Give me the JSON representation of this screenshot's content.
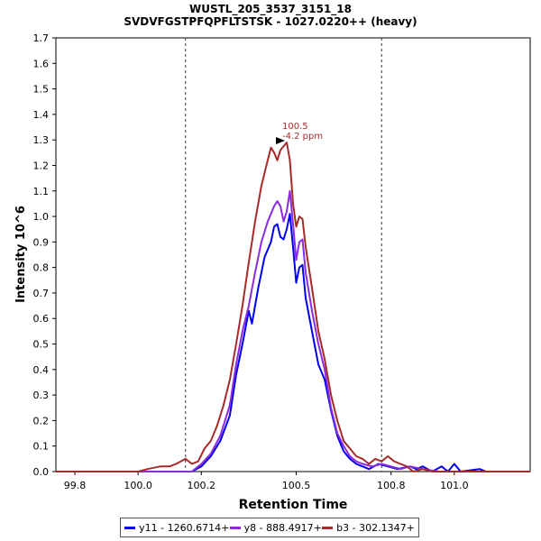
{
  "chart": {
    "title": "WUSTL_205_3537_3151_18",
    "subtitle": "SVDVFGSTPFQPFLTSTSK - 1027.0220++ (heavy)",
    "xlabel": "Retention Time",
    "ylabel": "Intensity 10^6",
    "annotation_line1": "100.5",
    "annotation_line2": "-4.2 ppm"
  },
  "legend": [
    {
      "label": "y11 - 1260.6714+",
      "color": "#0000ee"
    },
    {
      "label": "y8 - 888.4917+",
      "color": "#8a2be2"
    },
    {
      "label": "b3 - 302.1347+",
      "color": "#a52a2a"
    }
  ],
  "chart_data": {
    "type": "line",
    "title": "WUSTL_205_3537_3151_18",
    "subtitle": "SVDVFGSTPFQPFLTSTSK - 1027.0220++ (heavy)",
    "xlabel": "Retention Time",
    "ylabel": "Intensity 10^6",
    "xlim": [
      99.74,
      101.24
    ],
    "ylim": [
      0,
      1.7
    ],
    "x_ticks": [
      "99.8",
      "100.0",
      "100.2",
      "100.5",
      "100.8",
      "101.0"
    ],
    "x_tick_values": [
      99.8,
      100.0,
      100.2,
      100.5,
      100.8,
      101.0
    ],
    "y_ticks": [
      "0.0",
      "0.1",
      "0.2",
      "0.3",
      "0.4",
      "0.5",
      "0.6",
      "0.7",
      "0.8",
      "0.9",
      "1.0",
      "1.1",
      "1.2",
      "1.3",
      "1.4",
      "1.5",
      "1.6",
      "1.7"
    ],
    "grid": false,
    "legend_position": "bottom",
    "integration_boundaries": [
      100.15,
      100.77
    ],
    "peak_marker": {
      "x": 100.47,
      "y": 1.29,
      "label": "100.5",
      "sublabel": "-4.2 ppm"
    },
    "series": [
      {
        "name": "y11 - 1260.6714+",
        "color": "#0000ee",
        "points": [
          [
            99.74,
            0.0
          ],
          [
            100.05,
            0.0
          ],
          [
            100.17,
            0.0
          ],
          [
            100.2,
            0.02
          ],
          [
            100.23,
            0.06
          ],
          [
            100.26,
            0.12
          ],
          [
            100.29,
            0.22
          ],
          [
            100.31,
            0.38
          ],
          [
            100.33,
            0.5
          ],
          [
            100.35,
            0.63
          ],
          [
            100.36,
            0.58
          ],
          [
            100.38,
            0.72
          ],
          [
            100.4,
            0.84
          ],
          [
            100.42,
            0.9
          ],
          [
            100.43,
            0.96
          ],
          [
            100.44,
            0.97
          ],
          [
            100.45,
            0.92
          ],
          [
            100.46,
            0.91
          ],
          [
            100.47,
            0.95
          ],
          [
            100.48,
            1.01
          ],
          [
            100.49,
            0.88
          ],
          [
            100.5,
            0.74
          ],
          [
            100.51,
            0.8
          ],
          [
            100.52,
            0.81
          ],
          [
            100.53,
            0.68
          ],
          [
            100.55,
            0.55
          ],
          [
            100.57,
            0.42
          ],
          [
            100.59,
            0.36
          ],
          [
            100.61,
            0.24
          ],
          [
            100.63,
            0.14
          ],
          [
            100.65,
            0.08
          ],
          [
            100.67,
            0.05
          ],
          [
            100.69,
            0.03
          ],
          [
            100.71,
            0.02
          ],
          [
            100.73,
            0.01
          ],
          [
            100.76,
            0.03
          ],
          [
            100.79,
            0.02
          ],
          [
            100.82,
            0.01
          ],
          [
            100.86,
            0.02
          ],
          [
            100.88,
            0.01
          ],
          [
            100.9,
            0.02
          ],
          [
            100.93,
            0.0
          ],
          [
            100.96,
            0.02
          ],
          [
            100.98,
            0.0
          ],
          [
            101.0,
            0.03
          ],
          [
            101.02,
            0.0
          ],
          [
            101.08,
            0.01
          ],
          [
            101.1,
            0.0
          ],
          [
            101.24,
            0.0
          ]
        ]
      },
      {
        "name": "y8 - 888.4917+",
        "color": "#8a2be2",
        "points": [
          [
            99.74,
            0.0
          ],
          [
            100.05,
            0.0
          ],
          [
            100.17,
            0.0
          ],
          [
            100.2,
            0.03
          ],
          [
            100.23,
            0.07
          ],
          [
            100.26,
            0.14
          ],
          [
            100.29,
            0.26
          ],
          [
            100.31,
            0.42
          ],
          [
            100.33,
            0.55
          ],
          [
            100.35,
            0.65
          ],
          [
            100.37,
            0.78
          ],
          [
            100.39,
            0.9
          ],
          [
            100.41,
            0.98
          ],
          [
            100.43,
            1.04
          ],
          [
            100.44,
            1.06
          ],
          [
            100.45,
            1.04
          ],
          [
            100.46,
            0.98
          ],
          [
            100.47,
            1.02
          ],
          [
            100.48,
            1.1
          ],
          [
            100.49,
            0.97
          ],
          [
            100.5,
            0.83
          ],
          [
            100.51,
            0.9
          ],
          [
            100.52,
            0.91
          ],
          [
            100.53,
            0.78
          ],
          [
            100.55,
            0.63
          ],
          [
            100.57,
            0.5
          ],
          [
            100.59,
            0.4
          ],
          [
            100.61,
            0.25
          ],
          [
            100.63,
            0.15
          ],
          [
            100.65,
            0.1
          ],
          [
            100.67,
            0.06
          ],
          [
            100.69,
            0.04
          ],
          [
            100.71,
            0.03
          ],
          [
            100.74,
            0.02
          ],
          [
            100.77,
            0.03
          ],
          [
            100.8,
            0.02
          ],
          [
            100.83,
            0.01
          ],
          [
            100.86,
            0.02
          ],
          [
            100.9,
            0.01
          ],
          [
            100.95,
            0.0
          ],
          [
            101.24,
            0.0
          ]
        ]
      },
      {
        "name": "b3 - 302.1347+",
        "color": "#a52a2a",
        "points": [
          [
            99.74,
            0.0
          ],
          [
            100.0,
            0.0
          ],
          [
            100.03,
            0.01
          ],
          [
            100.07,
            0.02
          ],
          [
            100.1,
            0.02
          ],
          [
            100.12,
            0.03
          ],
          [
            100.15,
            0.05
          ],
          [
            100.17,
            0.03
          ],
          [
            100.19,
            0.04
          ],
          [
            100.21,
            0.09
          ],
          [
            100.23,
            0.12
          ],
          [
            100.25,
            0.18
          ],
          [
            100.27,
            0.26
          ],
          [
            100.29,
            0.36
          ],
          [
            100.31,
            0.5
          ],
          [
            100.33,
            0.65
          ],
          [
            100.35,
            0.82
          ],
          [
            100.37,
            0.98
          ],
          [
            100.39,
            1.12
          ],
          [
            100.41,
            1.22
          ],
          [
            100.42,
            1.27
          ],
          [
            100.43,
            1.25
          ],
          [
            100.44,
            1.22
          ],
          [
            100.45,
            1.26
          ],
          [
            100.47,
            1.29
          ],
          [
            100.48,
            1.22
          ],
          [
            100.49,
            1.05
          ],
          [
            100.5,
            0.96
          ],
          [
            100.51,
            1.0
          ],
          [
            100.52,
            0.99
          ],
          [
            100.53,
            0.88
          ],
          [
            100.55,
            0.72
          ],
          [
            100.57,
            0.55
          ],
          [
            100.59,
            0.44
          ],
          [
            100.61,
            0.3
          ],
          [
            100.63,
            0.2
          ],
          [
            100.65,
            0.12
          ],
          [
            100.67,
            0.09
          ],
          [
            100.69,
            0.06
          ],
          [
            100.71,
            0.05
          ],
          [
            100.73,
            0.03
          ],
          [
            100.75,
            0.05
          ],
          [
            100.77,
            0.04
          ],
          [
            100.79,
            0.06
          ],
          [
            100.81,
            0.04
          ],
          [
            100.83,
            0.03
          ],
          [
            100.85,
            0.02
          ],
          [
            100.87,
            0.0
          ],
          [
            100.9,
            0.01
          ],
          [
            100.93,
            0.0
          ],
          [
            101.24,
            0.0
          ]
        ]
      }
    ]
  }
}
